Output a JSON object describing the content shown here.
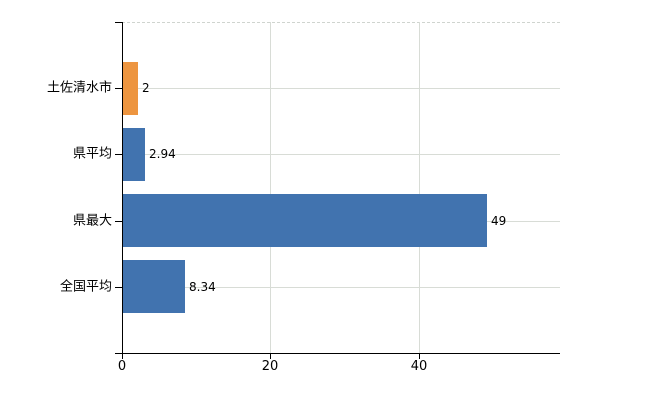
{
  "chart_data": {
    "type": "bar",
    "orientation": "horizontal",
    "title": "",
    "xlabel": "",
    "ylabel": "",
    "xlim": [
      0,
      59
    ],
    "grid": true,
    "legend": false,
    "categories": [
      "土佐清水市",
      "県平均",
      "県最大",
      "全国平均"
    ],
    "bars": [
      {
        "label": "土佐清水市",
        "value": 2,
        "value_label": "2",
        "color": "#ED9540"
      },
      {
        "label": "県平均",
        "value": 2.94,
        "value_label": "2.94",
        "color": "#4173AF"
      },
      {
        "label": "県最大",
        "value": 49,
        "value_label": "49",
        "color": "#4173AF"
      },
      {
        "label": "全国平均",
        "value": 8.34,
        "value_label": "8.34",
        "color": "#4173AF"
      }
    ],
    "x_ticks": [
      "0",
      "20",
      "40"
    ],
    "x_tick_values": [
      0,
      20,
      40
    ]
  },
  "colors": {
    "highlight_bar": "#ED9540",
    "default_bar": "#4173AF",
    "axis": "#000000",
    "gridline": "#d8dcd6",
    "background": "#ffffff",
    "text": "#000000"
  }
}
